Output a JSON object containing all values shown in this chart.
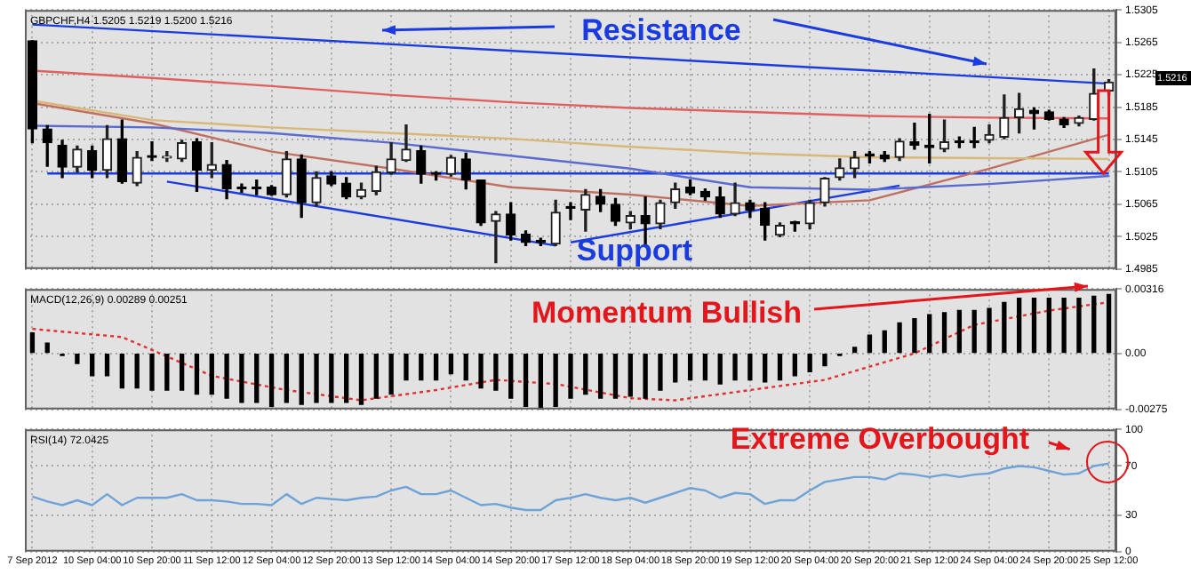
{
  "chart_data": [
    {
      "type": "candlestick",
      "title": "GBPCHF,H4 1.5205 1.5219 1.5200 1.5216",
      "tick_labels": "y",
      "grid": true,
      "ohlc": [
        [
          1.5267,
          1.5267,
          1.5141,
          1.5158
        ],
        [
          1.5158,
          1.5162,
          1.5112,
          1.5141
        ],
        [
          1.5138,
          1.5144,
          1.5098,
          1.5111
        ],
        [
          1.5111,
          1.5137,
          1.5105,
          1.5133
        ],
        [
          1.5131,
          1.5137,
          1.5098,
          1.5107
        ],
        [
          1.5107,
          1.5162,
          1.5098,
          1.5146
        ],
        [
          1.5146,
          1.5169,
          1.5091,
          1.5093
        ],
        [
          1.5091,
          1.513,
          1.5088,
          1.5123
        ],
        [
          1.5123,
          1.5142,
          1.5119,
          1.5123
        ],
        [
          1.5122,
          1.513,
          1.5118,
          1.5123
        ],
        [
          1.5121,
          1.5144,
          1.5118,
          1.5141
        ],
        [
          1.5142,
          1.5146,
          1.5081,
          1.5107
        ],
        [
          1.5107,
          1.5141,
          1.5098,
          1.5114
        ],
        [
          1.5114,
          1.5119,
          1.5072,
          1.5084
        ],
        [
          1.5084,
          1.509,
          1.508,
          1.5084
        ],
        [
          1.5084,
          1.5095,
          1.5077,
          1.5084
        ],
        [
          1.5086,
          1.5088,
          1.5076,
          1.5077
        ],
        [
          1.5077,
          1.513,
          1.5074,
          1.5121
        ],
        [
          1.5121,
          1.5126,
          1.5049,
          1.5067
        ],
        [
          1.5067,
          1.5105,
          1.5063,
          1.5098
        ],
        [
          1.51,
          1.5105,
          1.5088,
          1.509
        ],
        [
          1.5091,
          1.5098,
          1.5072,
          1.5074
        ],
        [
          1.5074,
          1.5091,
          1.5072,
          1.5083
        ],
        [
          1.5081,
          1.5112,
          1.5077,
          1.5105
        ],
        [
          1.5104,
          1.5141,
          1.5102,
          1.5121
        ],
        [
          1.5119,
          1.5163,
          1.5118,
          1.5133
        ],
        [
          1.5131,
          1.5137,
          1.5091,
          1.5102
        ],
        [
          1.5102,
          1.5105,
          1.5095,
          1.5102
        ],
        [
          1.5102,
          1.5125,
          1.51,
          1.5123
        ],
        [
          1.5121,
          1.5128,
          1.5084,
          1.5095
        ],
        [
          1.5095,
          1.5095,
          1.5039,
          1.5042
        ],
        [
          1.5044,
          1.5056,
          1.4993,
          1.5053
        ],
        [
          1.5053,
          1.5067,
          1.5021,
          1.5027
        ],
        [
          1.5028,
          1.5032,
          1.5014,
          1.5018
        ],
        [
          1.5018,
          1.5023,
          1.5014,
          1.5018
        ],
        [
          1.5016,
          1.507,
          1.5014,
          1.5055
        ],
        [
          1.506,
          1.5067,
          1.5046,
          1.506
        ],
        [
          1.5058,
          1.5083,
          1.5032,
          1.5077
        ],
        [
          1.5075,
          1.5083,
          1.5056,
          1.5065
        ],
        [
          1.5065,
          1.5072,
          1.5039,
          1.5044
        ],
        [
          1.5042,
          1.5056,
          1.5035,
          1.5051
        ],
        [
          1.5051,
          1.5074,
          1.5014,
          1.5041
        ],
        [
          1.5041,
          1.507,
          1.5035,
          1.5067
        ],
        [
          1.5067,
          1.5091,
          1.506,
          1.5084
        ],
        [
          1.5086,
          1.5095,
          1.5077,
          1.5079
        ],
        [
          1.5081,
          1.5084,
          1.507,
          1.5074
        ],
        [
          1.5074,
          1.5086,
          1.5049,
          1.5053
        ],
        [
          1.5053,
          1.5091,
          1.5051,
          1.5067
        ],
        [
          1.5067,
          1.507,
          1.5049,
          1.5058
        ],
        [
          1.506,
          1.5067,
          1.5021,
          1.5039
        ],
        [
          1.5027,
          1.5042,
          1.5025,
          1.5039
        ],
        [
          1.5041,
          1.5044,
          1.5032,
          1.5041
        ],
        [
          1.5041,
          1.507,
          1.5035,
          1.5067
        ],
        [
          1.5067,
          1.5098,
          1.5063,
          1.5097
        ],
        [
          1.5098,
          1.5121,
          1.5095,
          1.511
        ],
        [
          1.5109,
          1.513,
          1.5098,
          1.5123
        ],
        [
          1.5125,
          1.513,
          1.5116,
          1.5125
        ],
        [
          1.5126,
          1.513,
          1.5118,
          1.5121
        ],
        [
          1.5123,
          1.5146,
          1.5119,
          1.5143
        ],
        [
          1.5142,
          1.5165,
          1.5133,
          1.5138
        ],
        [
          1.5138,
          1.5176,
          1.5116,
          1.5135
        ],
        [
          1.5133,
          1.5169,
          1.513,
          1.5142
        ],
        [
          1.5141,
          1.5148,
          1.5135,
          1.5141
        ],
        [
          1.5141,
          1.516,
          1.5135,
          1.5141
        ],
        [
          1.5144,
          1.5163,
          1.5141,
          1.5151
        ],
        [
          1.5148,
          1.52,
          1.5146,
          1.5172
        ],
        [
          1.5172,
          1.5202,
          1.5153,
          1.5183
        ],
        [
          1.5181,
          1.5184,
          1.5158,
          1.5177
        ],
        [
          1.5179,
          1.5181,
          1.5169,
          1.517
        ],
        [
          1.517,
          1.5172,
          1.516,
          1.5163
        ],
        [
          1.5165,
          1.5174,
          1.5162,
          1.5172
        ],
        [
          1.517,
          1.5232,
          1.5169,
          1.5202
        ],
        [
          1.5205,
          1.5219,
          1.52,
          1.5216
        ]
      ],
      "series": [
        {
          "type": "line",
          "color": "#e06060",
          "values": [
            1.523,
            null,
            null,
            null,
            null,
            null,
            null,
            null,
            1.5221,
            null,
            null,
            null,
            null,
            null,
            null,
            null,
            1.5211,
            null,
            null,
            null,
            null,
            null,
            null,
            null,
            1.52,
            null,
            null,
            null,
            null,
            null,
            null,
            null,
            1.5191,
            null,
            null,
            null,
            null,
            null,
            null,
            null,
            1.5184,
            null,
            null,
            null,
            null,
            null,
            null,
            null,
            1.5179,
            null,
            null,
            null,
            null,
            null,
            null,
            null,
            1.5174,
            null,
            null,
            null,
            null,
            null,
            null,
            null,
            1.5172,
            null,
            null,
            null,
            null,
            null,
            null,
            null,
            1.5171
          ]
        },
        {
          "type": "line",
          "color": "#d8b878",
          "values": [
            1.5193,
            null,
            null,
            null,
            null,
            null,
            null,
            null,
            1.5169,
            null,
            null,
            null,
            null,
            null,
            null,
            null,
            1.516,
            null,
            null,
            null,
            null,
            null,
            null,
            null,
            1.5153,
            null,
            null,
            null,
            null,
            null,
            null,
            null,
            1.5146,
            null,
            null,
            null,
            null,
            null,
            null,
            null,
            1.5136,
            null,
            null,
            null,
            null,
            null,
            null,
            null,
            1.5128,
            null,
            null,
            null,
            null,
            null,
            null,
            null,
            1.5123,
            null,
            null,
            null,
            null,
            null,
            null,
            null,
            1.5122,
            null,
            null,
            null,
            null,
            null,
            null,
            null,
            1.5121
          ]
        },
        {
          "type": "line",
          "color": "#5a6bd0",
          "values": [
            1.5162,
            null,
            null,
            null,
            null,
            null,
            null,
            null,
            1.516,
            null,
            null,
            null,
            null,
            null,
            null,
            null,
            1.5153,
            null,
            null,
            null,
            null,
            null,
            null,
            null,
            1.5141,
            null,
            null,
            null,
            null,
            null,
            null,
            null,
            1.5125,
            null,
            null,
            null,
            null,
            null,
            null,
            null,
            1.5109,
            null,
            null,
            null,
            null,
            null,
            null,
            null,
            1.5086,
            null,
            null,
            null,
            null,
            null,
            null,
            null,
            1.5083,
            null,
            null,
            null,
            null,
            null,
            null,
            null,
            1.509,
            null,
            null,
            null,
            null,
            null,
            null,
            null,
            1.51
          ]
        },
        {
          "type": "line",
          "color": "#c07060",
          "values": [
            1.519,
            null,
            null,
            null,
            null,
            null,
            null,
            null,
            1.5165,
            null,
            null,
            null,
            null,
            null,
            null,
            null,
            1.513,
            null,
            null,
            null,
            null,
            null,
            null,
            null,
            1.5109,
            null,
            null,
            null,
            null,
            null,
            null,
            null,
            1.5086,
            null,
            null,
            null,
            null,
            null,
            null,
            null,
            1.5077,
            null,
            null,
            null,
            null,
            null,
            null,
            null,
            1.5063,
            null,
            null,
            null,
            null,
            null,
            null,
            null,
            1.507,
            null,
            null,
            null,
            null,
            null,
            null,
            null,
            1.5109,
            null,
            null,
            null,
            null,
            null,
            null,
            null,
            1.5151
          ]
        },
        {
          "type": "line",
          "color": "#1a3be0",
          "values": [
            1.5287,
            null,
            null,
            null,
            null,
            null,
            null,
            null,
            null,
            null,
            null,
            null,
            null,
            null,
            null,
            null,
            null,
            null,
            null,
            null,
            null,
            null,
            null,
            null,
            null,
            null,
            null,
            null,
            null,
            null,
            null,
            null,
            null,
            null,
            null,
            null,
            null,
            null,
            null,
            null,
            null,
            null,
            null,
            null,
            null,
            null,
            null,
            null,
            null,
            null,
            null,
            null,
            null,
            null,
            null,
            null,
            null,
            null,
            null,
            null,
            null,
            null,
            null,
            null,
            null,
            null,
            null,
            null,
            null,
            null,
            null,
            null,
            1.5214
          ]
        },
        {
          "type": "line",
          "color": "#1a3be0",
          "values": [
            null,
            1.5103,
            null,
            null,
            null,
            null,
            null,
            null,
            null,
            null,
            null,
            null,
            null,
            null,
            null,
            null,
            null,
            null,
            null,
            null,
            null,
            null,
            null,
            null,
            null,
            null,
            null,
            null,
            null,
            null,
            null,
            null,
            null,
            null,
            null,
            null,
            null,
            null,
            null,
            null,
            null,
            null,
            null,
            null,
            null,
            null,
            null,
            null,
            null,
            null,
            null,
            null,
            null,
            null,
            null,
            null,
            null,
            null,
            null,
            null,
            null,
            null,
            null,
            null,
            null,
            null,
            null,
            null,
            null,
            null,
            null,
            null,
            1.5103
          ]
        },
        {
          "type": "line",
          "color": "#1a3be0",
          "values": [
            null,
            null,
            null,
            null,
            null,
            null,
            null,
            null,
            null,
            1.5093,
            null,
            null,
            null,
            null,
            null,
            null,
            null,
            null,
            null,
            null,
            null,
            null,
            null,
            null,
            null,
            null,
            null,
            null,
            null,
            null,
            null,
            null,
            null,
            null,
            null,
            1.5014,
            null,
            null,
            null,
            null,
            null,
            null,
            null,
            null,
            null,
            null,
            null,
            null,
            null,
            null,
            null,
            null,
            null,
            null,
            null,
            null,
            null,
            null,
            null,
            null,
            null,
            null,
            null,
            null,
            null,
            null,
            null,
            null,
            null,
            null,
            null,
            null,
            null
          ]
        },
        {
          "type": "line",
          "color": "#1a3be0",
          "values": [
            null,
            null,
            null,
            null,
            null,
            null,
            null,
            null,
            null,
            null,
            null,
            null,
            null,
            null,
            null,
            null,
            null,
            null,
            null,
            null,
            null,
            null,
            null,
            null,
            null,
            null,
            null,
            null,
            null,
            null,
            null,
            null,
            null,
            null,
            null,
            null,
            1.5018,
            null,
            null,
            null,
            null,
            null,
            null,
            null,
            null,
            null,
            null,
            null,
            null,
            null,
            null,
            null,
            null,
            null,
            null,
            null,
            null,
            null,
            1.5088,
            null,
            null,
            null,
            null,
            null,
            null,
            null,
            null,
            null,
            null,
            null,
            null,
            null,
            null
          ]
        }
      ],
      "ylim": [
        1.4985,
        1.5305
      ],
      "yticks": [
        1.4985,
        1.5025,
        1.5065,
        1.5105,
        1.5145,
        1.5185,
        1.5225,
        1.5265,
        1.5305
      ],
      "annotations": [
        "Resistance",
        "Support",
        "1.5216"
      ]
    },
    {
      "type": "bar",
      "title": "MACD(12,26,9) 0.00289 0.00251",
      "tick_labels": "y",
      "grid": true,
      "series": [
        {
          "type": "bar",
          "color": "#000000",
          "values": [
            0.001,
            0.0005,
            -0.0001,
            -0.0005,
            -0.0011,
            -0.0011,
            -0.0017,
            -0.0017,
            -0.0018,
            -0.0018,
            -0.0018,
            -0.002,
            -0.002,
            -0.0022,
            -0.0024,
            -0.0024,
            -0.0026,
            -0.0024,
            -0.0025,
            -0.0024,
            -0.0024,
            -0.0024,
            -0.0025,
            -0.0022,
            -0.002,
            -0.0013,
            -0.0013,
            -0.0013,
            -0.001,
            -0.0013,
            -0.0017,
            -0.0018,
            -0.0022,
            -0.0026,
            -0.00275,
            -0.0026,
            -0.0022,
            -0.002,
            -0.0022,
            -0.0022,
            -0.0021,
            -0.0022,
            -0.0018,
            -0.0014,
            -0.0013,
            -0.0013,
            -0.0015,
            -0.0013,
            -0.0013,
            -0.0014,
            -0.0013,
            -0.0011,
            -0.0009,
            -0.0006,
            -0.0001,
            0.0003,
            0.0009,
            0.0011,
            0.0015,
            0.0017,
            0.0019,
            0.002,
            0.0021,
            0.0021,
            0.0022,
            0.0025,
            0.0027,
            0.0027,
            0.0027,
            0.0027,
            0.0027,
            0.0028,
            0.00289
          ]
        },
        {
          "type": "line",
          "color": "#e03030",
          "line_style": "dotted",
          "values": [
            0.0012,
            null,
            null,
            null,
            null,
            null,
            0.0008,
            null,
            null,
            null,
            null,
            null,
            -0.0011,
            null,
            null,
            null,
            null,
            -0.0018,
            null,
            null,
            null,
            null,
            -0.0023,
            null,
            null,
            null,
            null,
            -0.0018,
            null,
            null,
            null,
            -0.0013,
            null,
            null,
            null,
            -0.0015,
            null,
            null,
            null,
            null,
            -0.0022,
            null,
            null,
            -0.0023,
            null,
            null,
            null,
            null,
            -0.0018,
            null,
            null,
            null,
            null,
            -0.0013,
            null,
            null,
            null,
            null,
            null,
            0.0,
            null,
            null,
            null,
            0.0014,
            null,
            null,
            null,
            null,
            0.0021,
            null,
            null,
            null,
            0.00251
          ]
        }
      ],
      "ylim": [
        -0.00275,
        0.00316
      ],
      "yticks": [
        -0.00275,
        {
          "value": 0,
          "label": "0.00"
        },
        0.00316
      ],
      "annotations": [
        "Momentum Bullish"
      ]
    },
    {
      "type": "line",
      "title": "RSI(14) 72.0425",
      "grid": true,
      "categories": [
        "7 Sep 2012",
        null,
        null,
        null,
        "10 Sep 04:00",
        null,
        null,
        null,
        "10 Sep 20:00",
        null,
        null,
        null,
        "11 Sep 12:00",
        null,
        null,
        null,
        "12 Sep 04:00",
        null,
        null,
        null,
        "12 Sep 20:00",
        null,
        null,
        null,
        "13 Sep 12:00",
        null,
        null,
        null,
        "14 Sep 04:00",
        null,
        null,
        null,
        "14 Sep 20:00",
        null,
        null,
        null,
        "17 Sep 12:00",
        null,
        null,
        null,
        "18 Sep 04:00",
        null,
        null,
        null,
        "18 Sep 20:00",
        null,
        null,
        null,
        "19 Sep 12:00",
        null,
        null,
        null,
        "20 Sep 04:00",
        null,
        null,
        null,
        "20 Sep 20:00",
        null,
        null,
        null,
        "21 Sep 12:00",
        null,
        null,
        null,
        "24 Sep 04:00",
        null,
        null,
        null,
        "24 Sep 20:00",
        null,
        null,
        null,
        "25 Sep 12:00"
      ],
      "color": "#6fa3d8",
      "values": [
        45,
        41,
        38,
        42,
        38,
        47,
        38,
        44,
        44,
        44,
        47,
        42,
        42,
        41,
        39,
        39,
        38,
        47,
        39,
        44,
        43,
        42,
        44,
        45,
        50,
        53,
        47,
        47,
        50,
        44,
        38,
        39,
        36,
        34,
        34,
        42,
        44,
        47,
        44,
        42,
        44,
        40,
        44,
        48,
        52,
        50,
        44,
        48,
        47,
        39,
        42,
        42,
        50,
        57,
        59,
        61,
        61,
        59,
        64,
        63,
        61,
        63,
        61,
        63,
        64,
        68,
        70,
        69,
        66,
        63,
        64,
        70,
        72.0425
      ],
      "ylim": [
        0,
        100
      ],
      "yticks": [
        0,
        30,
        70,
        100
      ],
      "annotations": [
        {
          "text": "Extreme Overbought",
          "x": "25 Sep 12:00",
          "y": 72.0425
        }
      ]
    }
  ]
}
